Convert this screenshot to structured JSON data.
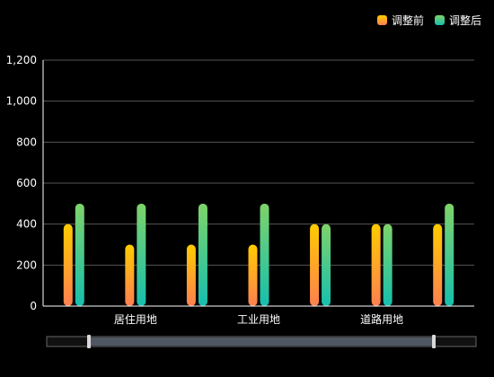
{
  "legend": {
    "items": [
      {
        "label": "调整前",
        "color_top": "#FFCC00",
        "color_bottom": "#FF7F50"
      },
      {
        "label": "调整后",
        "color_top": "#7ED36A",
        "color_bottom": "#16BFAE"
      }
    ]
  },
  "chart_data": {
    "type": "bar",
    "x_tick_labels": [
      "居住用地",
      "工业用地",
      "道路用地"
    ],
    "x_tick_label_positions": [
      1,
      3,
      5
    ],
    "series": [
      {
        "name": "调整前",
        "values": [
          400,
          300,
          300,
          300,
          400,
          400,
          400
        ]
      },
      {
        "name": "调整后",
        "values": [
          500,
          500,
          500,
          500,
          400,
          400,
          500
        ]
      }
    ],
    "category_count": 7,
    "ylim": [
      0,
      1200
    ],
    "y_ticks": [
      0,
      200,
      400,
      600,
      800,
      1000,
      1200
    ],
    "y_tick_labels": [
      "0",
      "200",
      "400",
      "600",
      "800",
      "1,000",
      "1,200"
    ],
    "grid": true,
    "legend_position": "top-right",
    "has_datazoom_slider": true
  }
}
